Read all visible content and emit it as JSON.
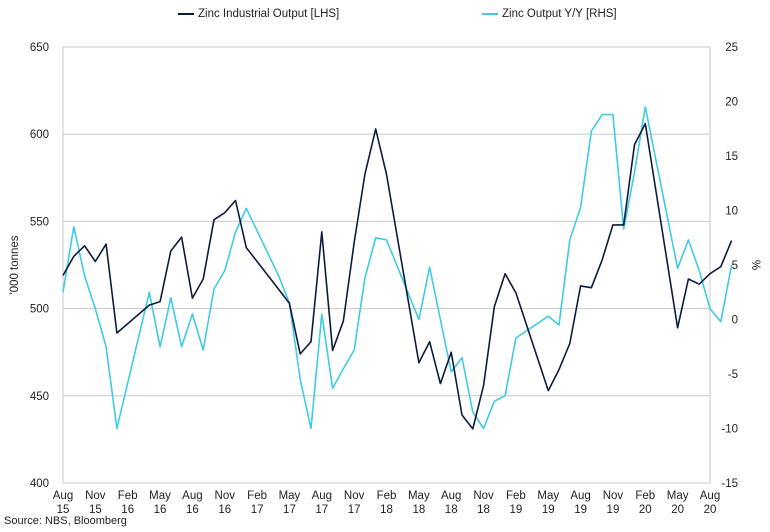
{
  "chart_data": {
    "type": "line",
    "legend": {
      "position": "top",
      "items": [
        "Zinc Industrial Output [LHS]",
        "Zinc Output Y/Y [RHS]"
      ]
    },
    "x_ticks": [
      {
        "month": "Aug",
        "year": "15"
      },
      {
        "month": "Nov",
        "year": "15"
      },
      {
        "month": "Feb",
        "year": "16"
      },
      {
        "month": "May",
        "year": "16"
      },
      {
        "month": "Aug",
        "year": "16"
      },
      {
        "month": "Nov",
        "year": "16"
      },
      {
        "month": "Feb",
        "year": "17"
      },
      {
        "month": "May",
        "year": "17"
      },
      {
        "month": "Aug",
        "year": "17"
      },
      {
        "month": "Nov",
        "year": "17"
      },
      {
        "month": "Feb",
        "year": "18"
      },
      {
        "month": "May",
        "year": "18"
      },
      {
        "month": "Aug",
        "year": "18"
      },
      {
        "month": "Nov",
        "year": "18"
      },
      {
        "month": "Feb",
        "year": "19"
      },
      {
        "month": "May",
        "year": "19"
      },
      {
        "month": "Aug",
        "year": "19"
      },
      {
        "month": "Nov",
        "year": "19"
      },
      {
        "month": "Feb",
        "year": "20"
      },
      {
        "month": "May",
        "year": "20"
      },
      {
        "month": "Aug",
        "year": "20"
      }
    ],
    "x_range": [
      "2015-08",
      "2020-08"
    ],
    "left_axis": {
      "label": "'000 tonnes",
      "ylim": [
        400,
        650
      ],
      "ticks": [
        "400",
        "450",
        "500",
        "550",
        "600",
        "650"
      ]
    },
    "right_axis": {
      "label": "%",
      "ylim": [
        -15,
        25
      ],
      "ticks": [
        "-15",
        "-10",
        "-5",
        "0",
        "5",
        "10",
        "15",
        "20",
        "25"
      ]
    },
    "grid": "horizontal",
    "series": [
      {
        "name": "Zinc Industrial Output [LHS]",
        "axis": "left",
        "color": "#0d1b3e",
        "points": [
          [
            "2015-08",
            519
          ],
          [
            "2015-09",
            530
          ],
          [
            "2015-10",
            536
          ],
          [
            "2015-11",
            527
          ],
          [
            "2015-12",
            537
          ],
          [
            "2016-01",
            486
          ],
          [
            "2016-04",
            502
          ],
          [
            "2016-05",
            504
          ],
          [
            "2016-06",
            533
          ],
          [
            "2016-07",
            541
          ],
          [
            "2016-08",
            506
          ],
          [
            "2016-09",
            517
          ],
          [
            "2016-10",
            551
          ],
          [
            "2016-11",
            555
          ],
          [
            "2016-12",
            562
          ],
          [
            "2017-01",
            535
          ],
          [
            "2017-04",
            511
          ],
          [
            "2017-05",
            503
          ],
          [
            "2017-06",
            474
          ],
          [
            "2017-07",
            481
          ],
          [
            "2017-08",
            544
          ],
          [
            "2017-09",
            476
          ],
          [
            "2017-10",
            493
          ],
          [
            "2017-11",
            538
          ],
          [
            "2017-12",
            577
          ],
          [
            "2018-01",
            603
          ],
          [
            "2018-02",
            577
          ],
          [
            "2018-05",
            469
          ],
          [
            "2018-06",
            481
          ],
          [
            "2018-07",
            457
          ],
          [
            "2018-08",
            475
          ],
          [
            "2018-09",
            439
          ],
          [
            "2018-10",
            431
          ],
          [
            "2018-11",
            456
          ],
          [
            "2018-12",
            501
          ],
          [
            "2019-01",
            520
          ],
          [
            "2019-02",
            509
          ],
          [
            "2019-05",
            453
          ],
          [
            "2019-06",
            465
          ],
          [
            "2019-07",
            480
          ],
          [
            "2019-08",
            513
          ],
          [
            "2019-09",
            512
          ],
          [
            "2019-10",
            528
          ],
          [
            "2019-11",
            548
          ],
          [
            "2019-12",
            548
          ],
          [
            "2020-01",
            594
          ],
          [
            "2020-02",
            606
          ],
          [
            "2020-05",
            489
          ],
          [
            "2020-06",
            517
          ],
          [
            "2020-07",
            514
          ],
          [
            "2020-08",
            520
          ],
          [
            "2020-09",
            524
          ],
          [
            "2020-10",
            539
          ]
        ]
      },
      {
        "name": "Zinc Output Y/Y [RHS]",
        "axis": "right",
        "color": "#3fcbe8",
        "points": [
          [
            "2015-08",
            2.5
          ],
          [
            "2015-09",
            8.5
          ],
          [
            "2015-10",
            4.0
          ],
          [
            "2015-11",
            1.0
          ],
          [
            "2015-12",
            -2.5
          ],
          [
            "2016-01",
            -10.0
          ],
          [
            "2016-04",
            2.5
          ],
          [
            "2016-05",
            -2.5
          ],
          [
            "2016-06",
            2.0
          ],
          [
            "2016-07",
            -2.5
          ],
          [
            "2016-08",
            0.5
          ],
          [
            "2016-09",
            -2.8
          ],
          [
            "2016-10",
            2.8
          ],
          [
            "2016-11",
            4.5
          ],
          [
            "2016-12",
            8.0
          ],
          [
            "2017-01",
            10.2
          ],
          [
            "2017-04",
            4.0
          ],
          [
            "2017-05",
            1.5
          ],
          [
            "2017-06",
            -5.5
          ],
          [
            "2017-07",
            -10.0
          ],
          [
            "2017-08",
            0.5
          ],
          [
            "2017-09",
            -6.3
          ],
          [
            "2017-10",
            -4.5
          ],
          [
            "2017-11",
            -2.8
          ],
          [
            "2017-12",
            3.8
          ],
          [
            "2018-01",
            7.5
          ],
          [
            "2018-02",
            7.3
          ],
          [
            "2018-05",
            0.0
          ],
          [
            "2018-06",
            4.8
          ],
          [
            "2018-07",
            0.0
          ],
          [
            "2018-08",
            -4.8
          ],
          [
            "2018-09",
            -3.5
          ],
          [
            "2018-10",
            -8.5
          ],
          [
            "2018-11",
            -10.0
          ],
          [
            "2018-12",
            -7.5
          ],
          [
            "2019-01",
            -7.0
          ],
          [
            "2019-02",
            -1.7
          ],
          [
            "2019-05",
            0.3
          ],
          [
            "2019-06",
            -0.5
          ],
          [
            "2019-07",
            7.3
          ],
          [
            "2019-08",
            10.3
          ],
          [
            "2019-09",
            17.3
          ],
          [
            "2019-10",
            18.8
          ],
          [
            "2019-11",
            18.8
          ],
          [
            "2019-12",
            8.3
          ],
          [
            "2020-01",
            13.5
          ],
          [
            "2020-02",
            19.5
          ],
          [
            "2020-05",
            4.7
          ],
          [
            "2020-06",
            7.3
          ],
          [
            "2020-07",
            4.5
          ],
          [
            "2020-08",
            1.0
          ],
          [
            "2020-09",
            -0.2
          ],
          [
            "2020-10",
            5.0
          ]
        ]
      }
    ]
  },
  "source": "Source: NBS, Bloomberg"
}
